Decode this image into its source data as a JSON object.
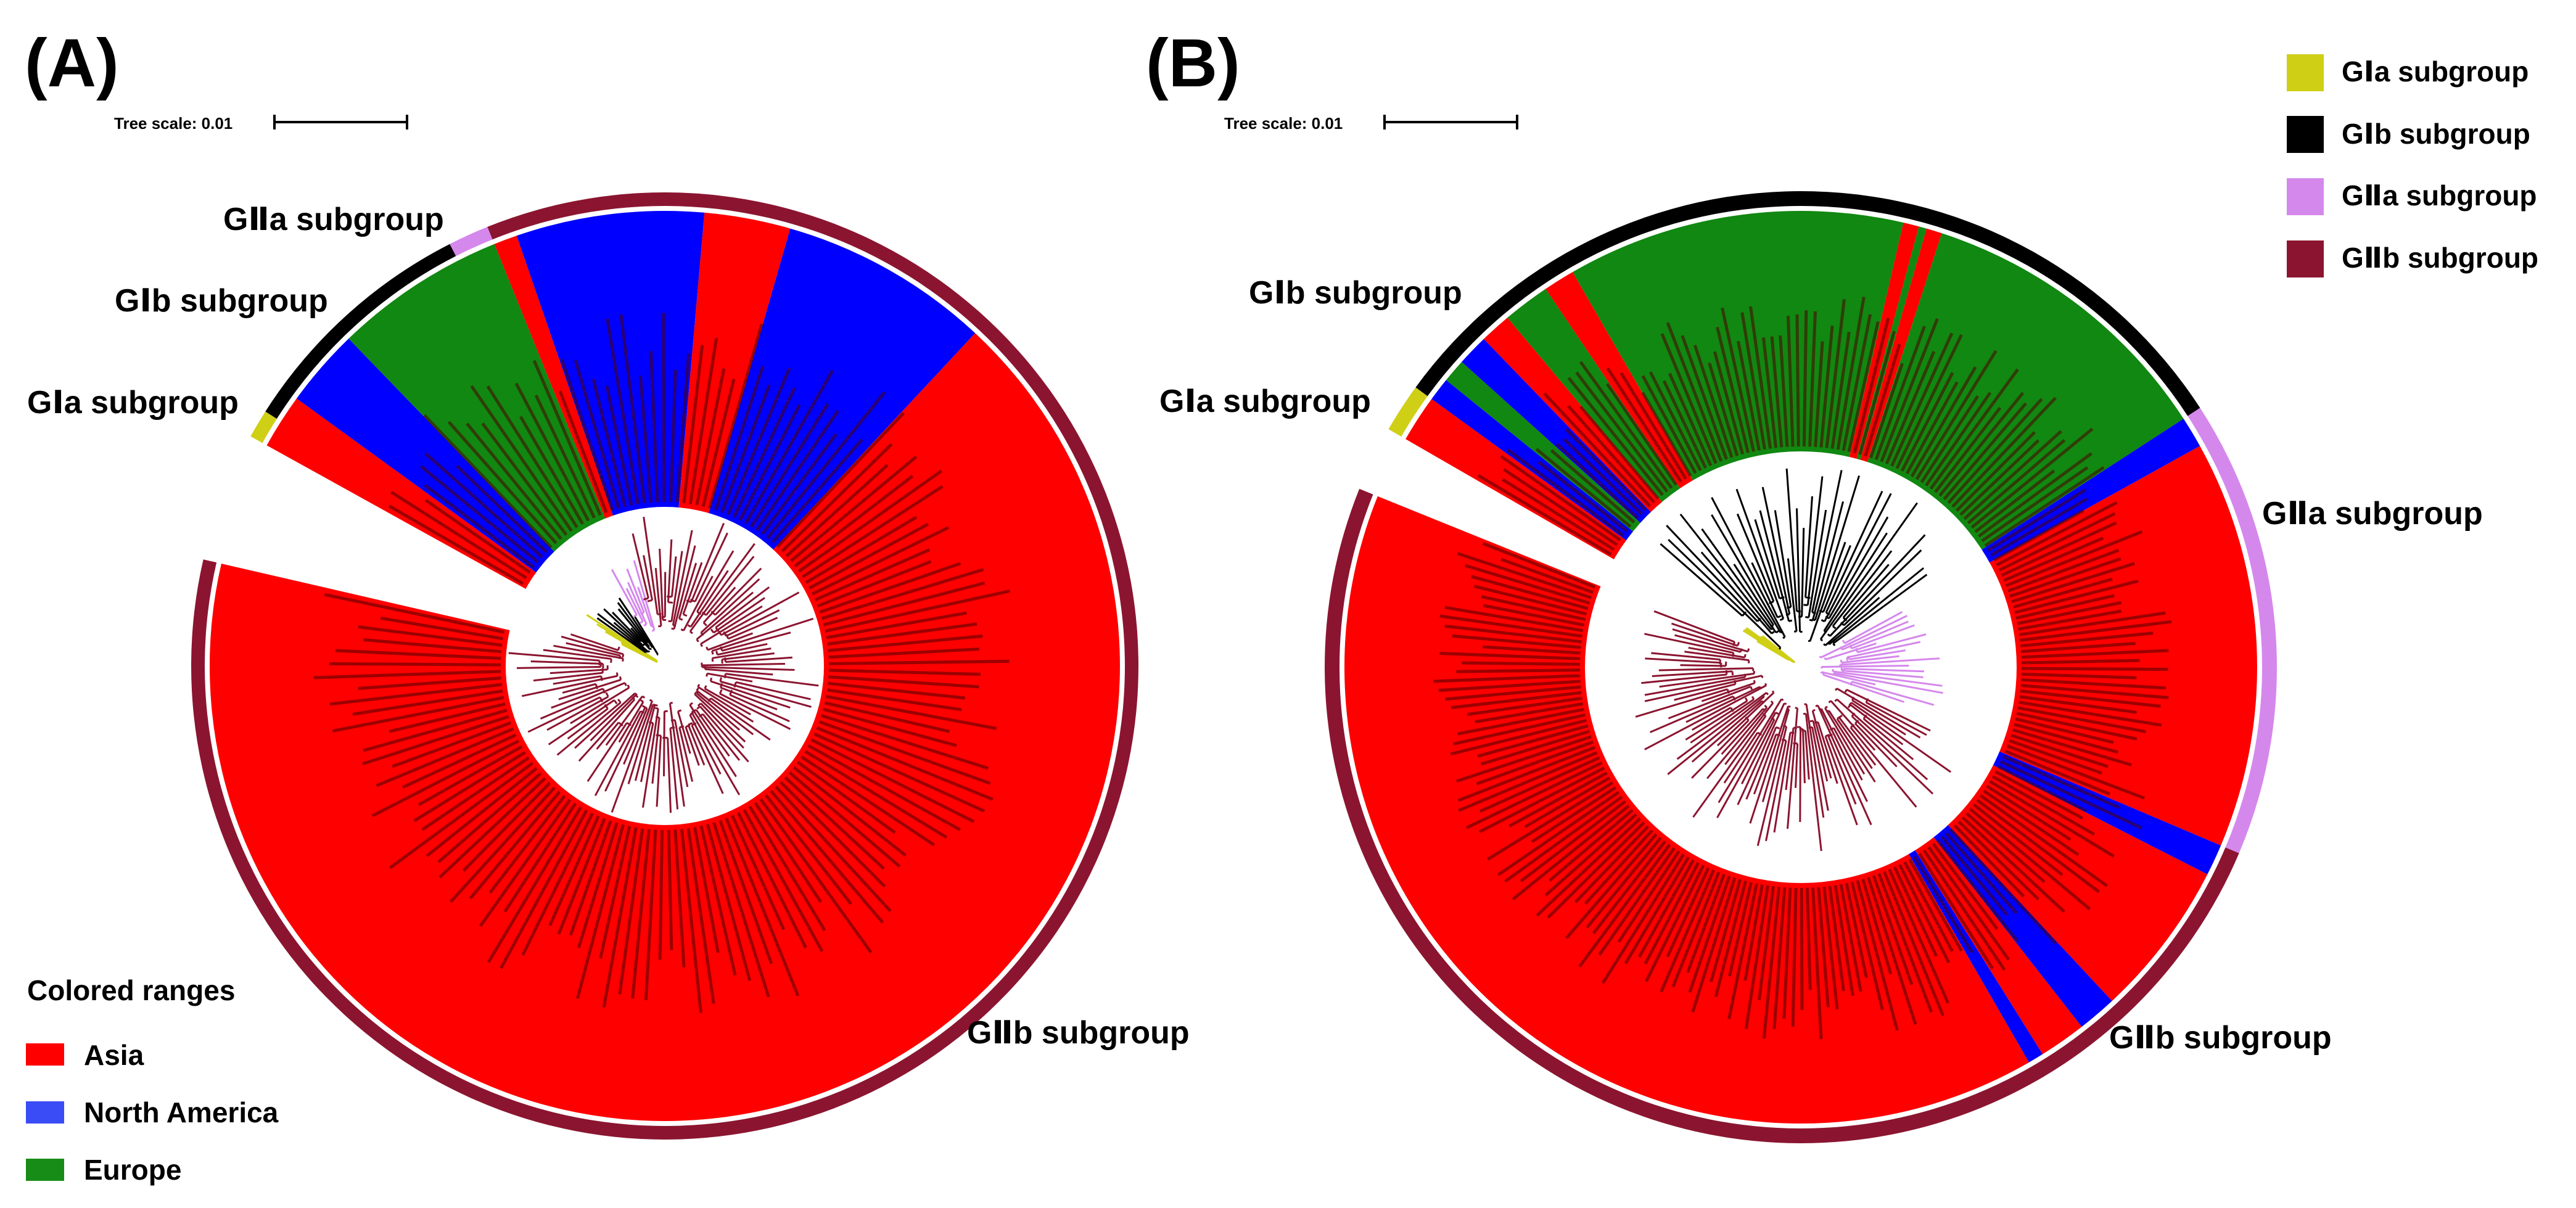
{
  "panels": [
    {
      "label": "(A)",
      "tree_scale": "Tree scale: 0.01",
      "subgroup_labels": {
        "GIa": "GⅠa subgroup",
        "GIb": "GⅠb subgroup",
        "GIIa": "GⅡa subgroup",
        "GIIb": "GⅡb subgroup"
      }
    },
    {
      "label": "(B)",
      "tree_scale": "Tree scale: 0.01",
      "subgroup_labels": {
        "GIa": "GⅠa subgroup",
        "GIb": "GⅠb subgroup",
        "GIIa": "GⅡa subgroup",
        "GIIb": "GⅡb subgroup"
      }
    }
  ],
  "subgroup_legend": [
    {
      "label": "GⅠa subgroup",
      "color": "#cfcf16"
    },
    {
      "label": "GⅠb subgroup",
      "color": "#000000"
    },
    {
      "label": "GⅡa subgroup",
      "color": "#d588ec"
    },
    {
      "label": "GⅡb subgroup",
      "color": "#8b1530"
    }
  ],
  "colored_ranges": {
    "title": "Colored ranges",
    "items": [
      {
        "label": "Asia",
        "color": "#ff0000"
      },
      {
        "label": "North America",
        "color": "#3a4cf5"
      },
      {
        "label": "Europe",
        "color": "#178c17"
      }
    ]
  },
  "colors": {
    "asia": "#ff0000",
    "north_america": "#0000ff",
    "europe": "#118811",
    "GIa": "#cfcf16",
    "GIb": "#000000",
    "GIIa": "#d588ec",
    "GIIb": "#8b1530"
  }
}
